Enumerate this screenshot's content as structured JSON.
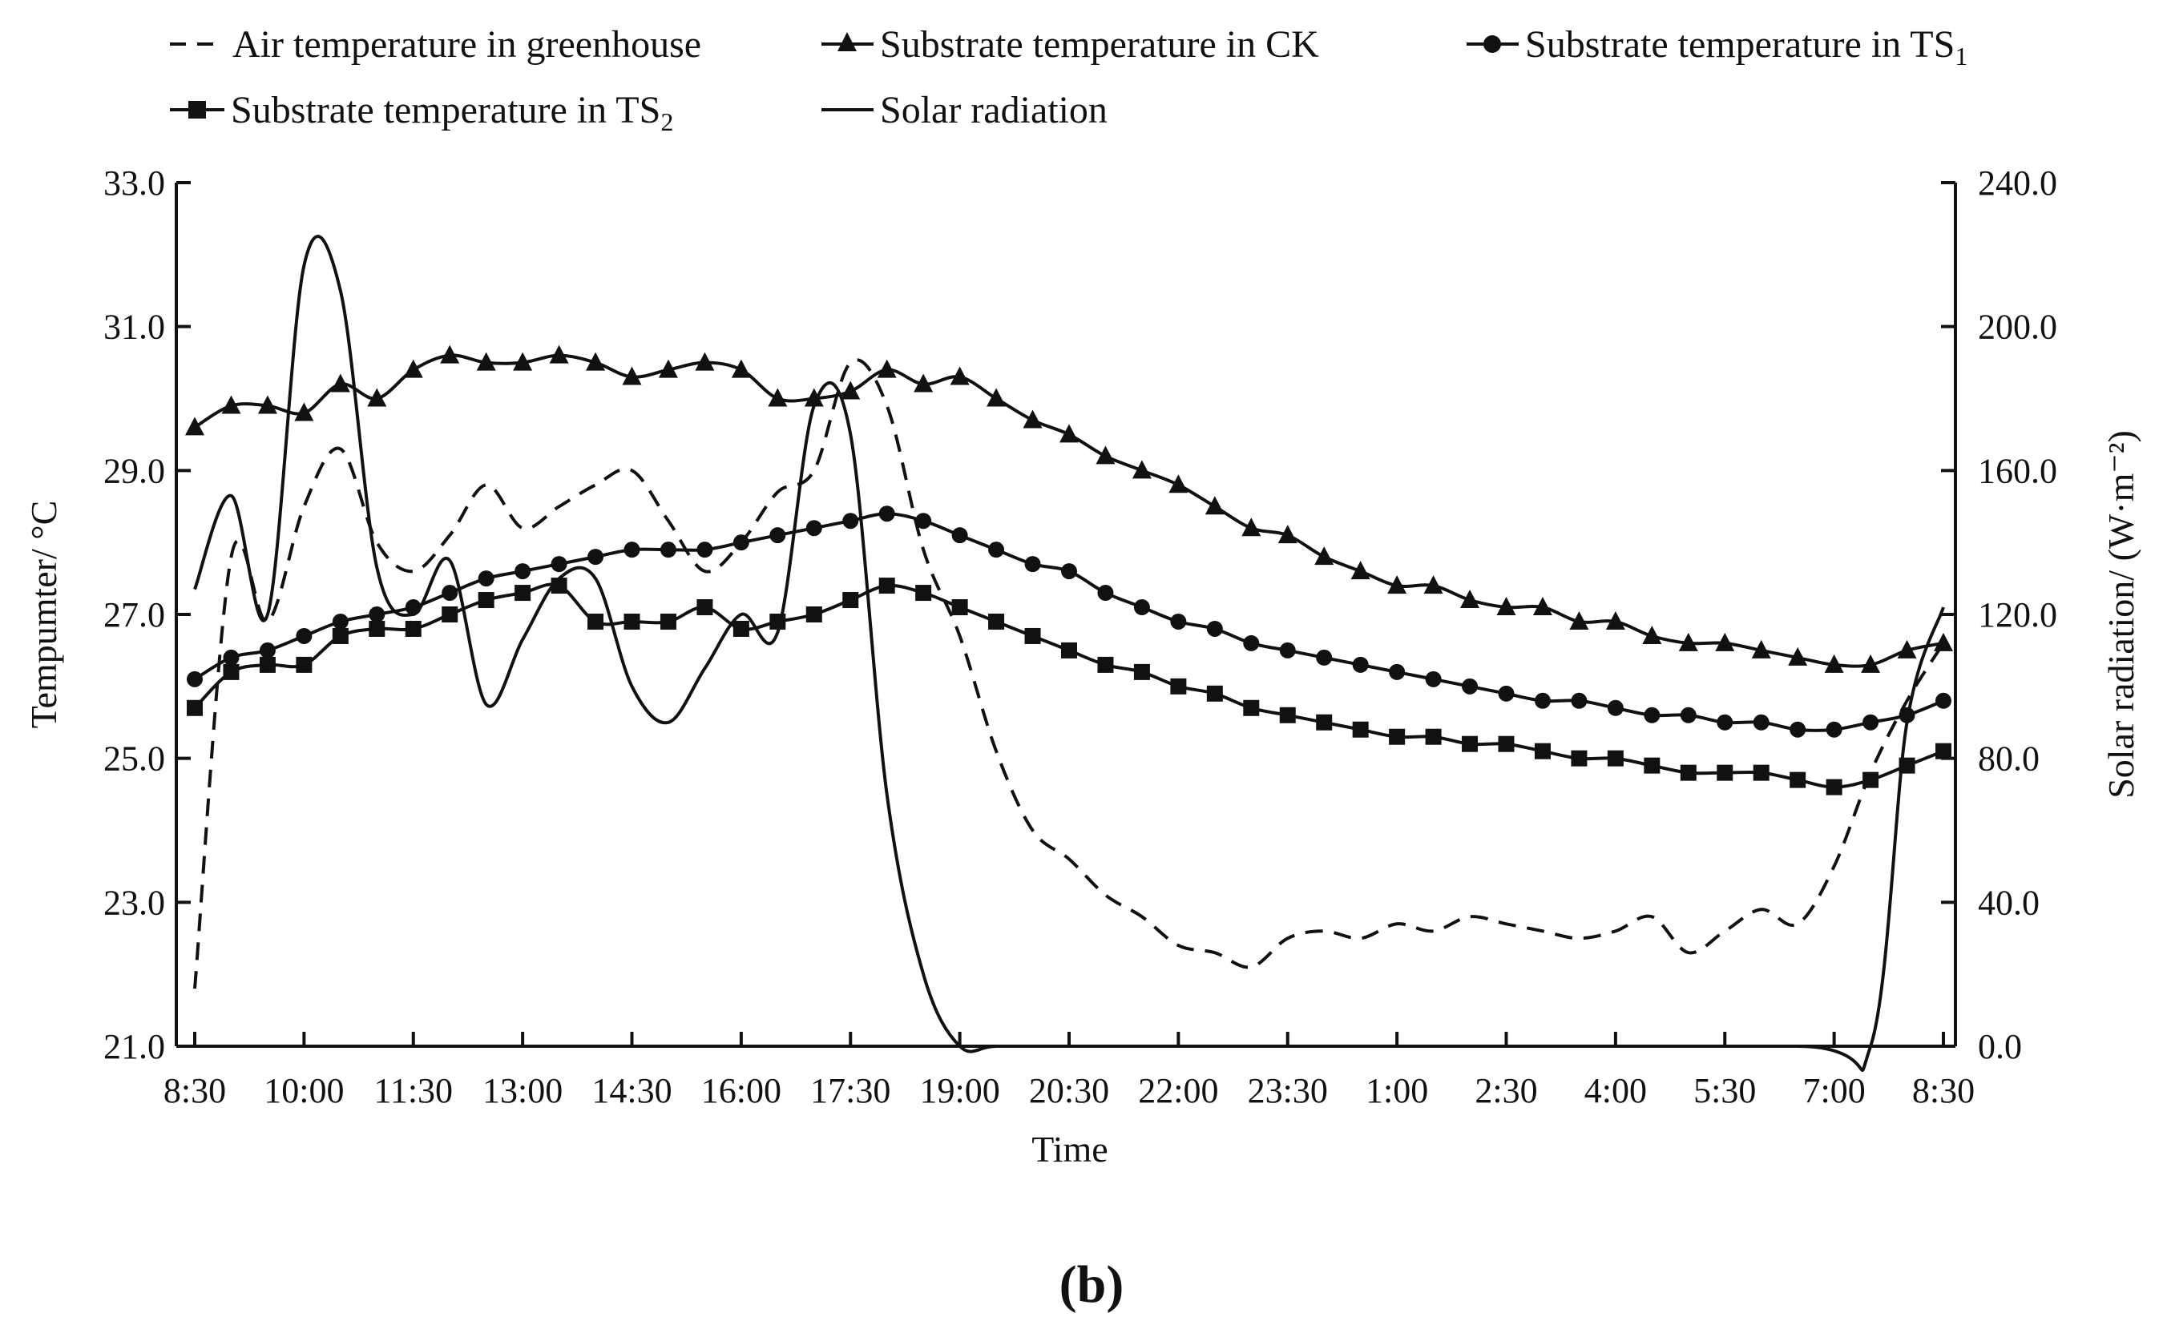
{
  "chart_data": {
    "type": "line",
    "panel_label": "(b)",
    "title": "",
    "xlabel": "Time",
    "ylabel_left": "Tempumter/ °C",
    "ylabel_right": "Solar radiation/ (W·m⁻²)",
    "ylim_left": [
      21.0,
      33.0
    ],
    "ylim_right": [
      0.0,
      240.0
    ],
    "yticks_left": [
      "21.0",
      "23.0",
      "25.0",
      "27.0",
      "29.0",
      "31.0",
      "33.0"
    ],
    "yticks_right": [
      "0.0",
      "40.0",
      "80.0",
      "120.0",
      "160.0",
      "200.0",
      "240.0"
    ],
    "x_tick_labels": [
      "8:30",
      "10:00",
      "11:30",
      "13:00",
      "14:30",
      "16:00",
      "17:30",
      "19:00",
      "20:30",
      "22:00",
      "23:30",
      "1:00",
      "2:30",
      "4:00",
      "5:30",
      "7:00",
      "8:30"
    ],
    "x_unit": "hours since 8:30 (0-24)",
    "x_range": [
      0,
      24
    ],
    "legend": {
      "placement": "top",
      "entries": [
        {
          "label": "Air temperature in greenhouse",
          "style": "dashed"
        },
        {
          "label": "Substrate temperature in CK",
          "style": "triangle"
        },
        {
          "label_main": "Substrate temperature in TS",
          "label_sub": "1",
          "style": "circle"
        },
        {
          "label_main": "Substrate temperature in TS",
          "label_sub": "2",
          "style": "square"
        },
        {
          "label": "Solar radiation",
          "style": "solid"
        }
      ]
    },
    "series": [
      {
        "name": "Substrate temperature in CK",
        "axis": "left",
        "marker": "triangle",
        "x": [
          0,
          0.5,
          1,
          1.5,
          2,
          2.5,
          3,
          3.5,
          4,
          4.5,
          5,
          5.5,
          6,
          6.5,
          7,
          7.5,
          8,
          8.5,
          9,
          9.5,
          10,
          10.5,
          11,
          11.5,
          12,
          12.5,
          13,
          13.5,
          14,
          14.5,
          15,
          15.5,
          16,
          16.5,
          17,
          17.5,
          18,
          18.5,
          19,
          19.5,
          20,
          20.5,
          21,
          21.5,
          22,
          22.5,
          23,
          23.5,
          24
        ],
        "values": [
          29.6,
          29.9,
          29.9,
          29.8,
          30.2,
          30.0,
          30.4,
          30.6,
          30.5,
          30.5,
          30.6,
          30.5,
          30.3,
          30.4,
          30.5,
          30.4,
          30.0,
          30.0,
          30.1,
          30.4,
          30.2,
          30.3,
          30.0,
          29.7,
          29.5,
          29.2,
          29.0,
          28.8,
          28.5,
          28.2,
          28.1,
          27.8,
          27.6,
          27.4,
          27.4,
          27.2,
          27.1,
          27.1,
          26.9,
          26.9,
          26.7,
          26.6,
          26.6,
          26.5,
          26.4,
          26.3,
          26.3,
          26.5,
          26.6
        ]
      },
      {
        "name": "Substrate temperature in TS1",
        "axis": "left",
        "marker": "circle",
        "x": [
          0,
          0.5,
          1,
          1.5,
          2,
          2.5,
          3,
          3.5,
          4,
          4.5,
          5,
          5.5,
          6,
          6.5,
          7,
          7.5,
          8,
          8.5,
          9,
          9.5,
          10,
          10.5,
          11,
          11.5,
          12,
          12.5,
          13,
          13.5,
          14,
          14.5,
          15,
          15.5,
          16,
          16.5,
          17,
          17.5,
          18,
          18.5,
          19,
          19.5,
          20,
          20.5,
          21,
          21.5,
          22,
          22.5,
          23,
          23.5,
          24
        ],
        "values": [
          26.1,
          26.4,
          26.5,
          26.7,
          26.9,
          27.0,
          27.1,
          27.3,
          27.5,
          27.6,
          27.7,
          27.8,
          27.9,
          27.9,
          27.9,
          28.0,
          28.1,
          28.2,
          28.3,
          28.4,
          28.3,
          28.1,
          27.9,
          27.7,
          27.6,
          27.3,
          27.1,
          26.9,
          26.8,
          26.6,
          26.5,
          26.4,
          26.3,
          26.2,
          26.1,
          26.0,
          25.9,
          25.8,
          25.8,
          25.7,
          25.6,
          25.6,
          25.5,
          25.5,
          25.4,
          25.4,
          25.5,
          25.6,
          25.8
        ]
      },
      {
        "name": "Substrate temperature in TS2",
        "axis": "left",
        "marker": "square",
        "x": [
          0,
          0.5,
          1,
          1.5,
          2,
          2.5,
          3,
          3.5,
          4,
          4.5,
          5,
          5.5,
          6,
          6.5,
          7,
          7.5,
          8,
          8.5,
          9,
          9.5,
          10,
          10.5,
          11,
          11.5,
          12,
          12.5,
          13,
          13.5,
          14,
          14.5,
          15,
          15.5,
          16,
          16.5,
          17,
          17.5,
          18,
          18.5,
          19,
          19.5,
          20,
          20.5,
          21,
          21.5,
          22,
          22.5,
          23,
          23.5,
          24
        ],
        "values": [
          25.7,
          26.2,
          26.3,
          26.3,
          26.7,
          26.8,
          26.8,
          27.0,
          27.2,
          27.3,
          27.4,
          26.9,
          26.9,
          26.9,
          27.1,
          26.8,
          26.9,
          27.0,
          27.2,
          27.4,
          27.3,
          27.1,
          26.9,
          26.7,
          26.5,
          26.3,
          26.2,
          26.0,
          25.9,
          25.7,
          25.6,
          25.5,
          25.4,
          25.3,
          25.3,
          25.2,
          25.2,
          25.1,
          25.0,
          25.0,
          24.9,
          24.8,
          24.8,
          24.8,
          24.7,
          24.6,
          24.7,
          24.9,
          25.1
        ]
      },
      {
        "name": "Air temperature in greenhouse",
        "axis": "left",
        "marker": "none",
        "style": "dashed",
        "x": [
          0,
          0.5,
          1,
          1.5,
          2,
          2.5,
          3,
          3.5,
          4,
          4.5,
          5,
          5.5,
          6,
          6.5,
          7,
          7.5,
          8,
          8.5,
          9,
          9.5,
          10,
          10.5,
          11,
          11.5,
          12,
          12.5,
          13,
          13.5,
          14,
          14.5,
          15,
          15.5,
          16,
          16.5,
          17,
          17.5,
          18,
          18.5,
          19,
          19.5,
          20,
          20.5,
          21,
          21.5,
          22,
          22.5,
          23,
          23.5,
          24
        ],
        "values": [
          21.8,
          27.8,
          26.9,
          28.5,
          29.3,
          28.0,
          27.6,
          28.1,
          28.8,
          28.2,
          28.5,
          28.8,
          29.0,
          28.3,
          27.6,
          28.0,
          28.7,
          29.0,
          30.5,
          29.9,
          27.9,
          26.7,
          25.1,
          24.0,
          23.6,
          23.1,
          22.8,
          22.4,
          22.3,
          22.1,
          22.5,
          22.6,
          22.5,
          22.7,
          22.6,
          22.8,
          22.7,
          22.6,
          22.5,
          22.6,
          22.8,
          22.3,
          22.6,
          22.9,
          22.7,
          23.5,
          24.8,
          25.8,
          26.6
        ]
      },
      {
        "name": "Solar radiation",
        "axis": "right",
        "marker": "none",
        "style": "solid",
        "x": [
          0,
          0.5,
          1,
          1.5,
          2,
          2.5,
          3,
          3.5,
          4,
          4.5,
          5,
          5.5,
          6,
          6.5,
          7,
          7.5,
          8,
          8.5,
          9,
          9.5,
          10,
          10.5,
          11,
          12,
          14,
          16,
          22,
          23,
          23.5,
          24
        ],
        "values": [
          127,
          153,
          120,
          217,
          210,
          133,
          120,
          135,
          95,
          113,
          130,
          130,
          100,
          90,
          105,
          120,
          115,
          178,
          170,
          70,
          20,
          0,
          0,
          0,
          0,
          0,
          0,
          0,
          90,
          122
        ]
      }
    ]
  }
}
